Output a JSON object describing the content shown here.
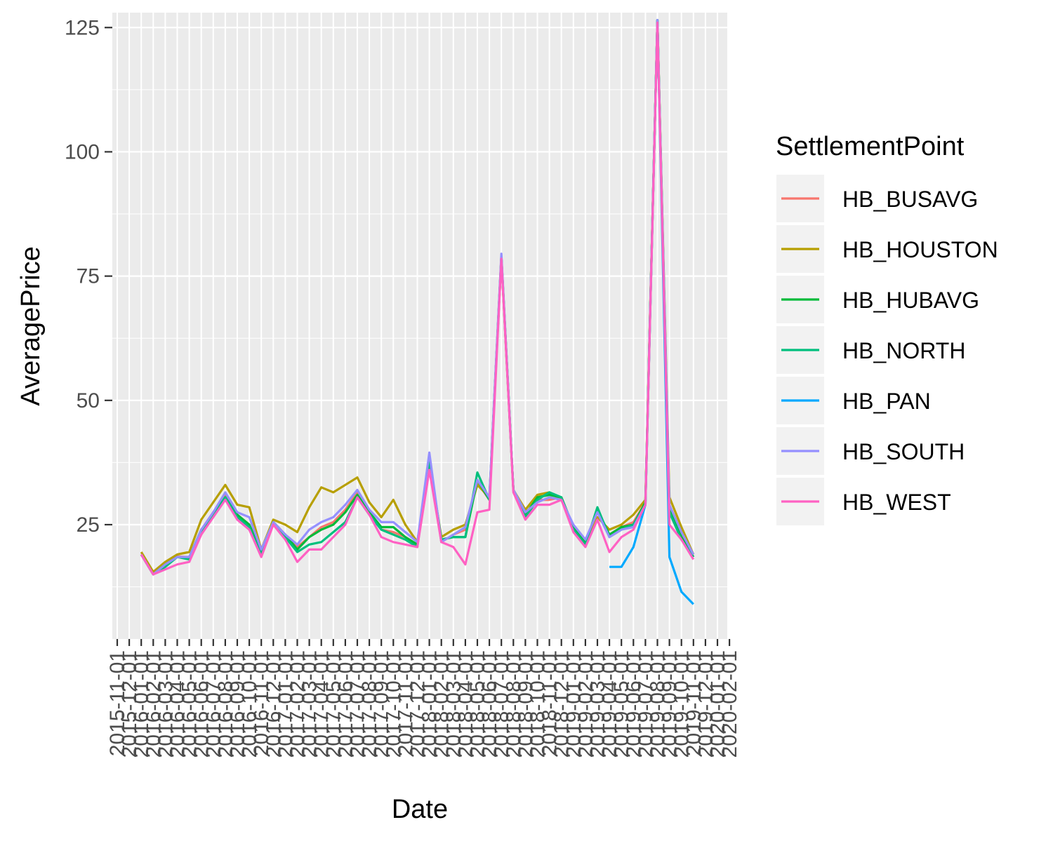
{
  "chart_data": {
    "type": "line",
    "xlabel": "Date",
    "ylabel": "AveragePrice",
    "legend_title": "SettlementPoint",
    "legend_position": "right",
    "grid": true,
    "ylim": [
      2,
      128
    ],
    "yticks": [
      25,
      50,
      75,
      100,
      125
    ],
    "x": [
      "2015-11-01",
      "2015-12-01",
      "2016-01-01",
      "2016-02-01",
      "2016-03-01",
      "2016-04-01",
      "2016-05-01",
      "2016-06-01",
      "2016-07-01",
      "2016-08-01",
      "2016-09-01",
      "2016-10-01",
      "2016-11-01",
      "2016-12-01",
      "2017-01-01",
      "2017-02-01",
      "2017-03-01",
      "2017-04-01",
      "2017-05-01",
      "2017-06-01",
      "2017-07-01",
      "2017-08-01",
      "2017-09-01",
      "2017-10-01",
      "2017-11-01",
      "2017-12-01",
      "2018-01-01",
      "2018-02-01",
      "2018-03-01",
      "2018-04-01",
      "2018-05-01",
      "2018-06-01",
      "2018-07-01",
      "2018-08-01",
      "2018-09-01",
      "2018-10-01",
      "2018-11-01",
      "2018-12-01",
      "2019-01-01",
      "2019-02-01",
      "2019-03-01",
      "2019-04-01",
      "2019-05-01",
      "2019-06-01",
      "2019-07-01",
      "2019-08-01",
      "2019-09-01",
      "2019-10-01",
      "2019-11-01",
      "2019-12-01",
      "2020-01-01",
      "2020-02-01"
    ],
    "series": [
      {
        "name": "HB_BUSAVG",
        "color": "#F8766D",
        "values": [
          null,
          null,
          19.0,
          15.0,
          17.0,
          18.6,
          18.5,
          24.0,
          27.5,
          31.0,
          27.0,
          25.0,
          19.5,
          25.5,
          23.0,
          20.5,
          22.5,
          24.5,
          25.5,
          28.0,
          31.5,
          27.5,
          24.0,
          23.5,
          22.5,
          21.0,
          38.0,
          21.5,
          23.0,
          24.0,
          33.5,
          30.0,
          79.0,
          32.0,
          27.0,
          30.0,
          30.0,
          30.5,
          24.5,
          21.5,
          27.5,
          23.0,
          24.5,
          25.5,
          29.5,
          126.5,
          28.5,
          23.0,
          18.5,
          null,
          null,
          null
        ]
      },
      {
        "name": "HB_HOUSTON",
        "color": "#B79F00",
        "values": [
          null,
          null,
          19.5,
          15.5,
          17.5,
          19.0,
          19.5,
          26.0,
          29.5,
          33.0,
          29.0,
          28.5,
          20.0,
          26.0,
          25.0,
          23.5,
          28.5,
          32.5,
          31.5,
          33.0,
          34.5,
          29.5,
          26.5,
          30.0,
          25.0,
          21.5,
          37.5,
          22.5,
          24.0,
          25.0,
          33.0,
          30.5,
          78.5,
          32.0,
          28.0,
          31.0,
          31.5,
          30.0,
          24.5,
          21.5,
          26.5,
          24.0,
          25.0,
          27.0,
          30.0,
          126.5,
          30.5,
          24.5,
          19.0,
          null,
          null,
          null
        ]
      },
      {
        "name": "HB_HUBAVG",
        "color": "#00BA38",
        "values": [
          null,
          null,
          19.0,
          15.0,
          17.0,
          18.5,
          18.5,
          24.0,
          27.0,
          30.5,
          27.0,
          25.0,
          19.5,
          25.5,
          23.0,
          20.0,
          22.5,
          24.0,
          25.0,
          27.5,
          31.0,
          27.5,
          24.5,
          24.5,
          22.5,
          21.0,
          38.0,
          22.0,
          22.5,
          22.5,
          34.0,
          30.0,
          79.0,
          32.0,
          27.0,
          30.5,
          31.0,
          30.5,
          24.5,
          21.5,
          28.0,
          23.0,
          24.5,
          25.0,
          29.5,
          126.5,
          28.0,
          22.5,
          18.5,
          null,
          null,
          null
        ]
      },
      {
        "name": "HB_NORTH",
        "color": "#00BF7D",
        "values": [
          null,
          null,
          19.0,
          15.0,
          16.5,
          18.5,
          18.0,
          23.5,
          27.0,
          30.5,
          26.5,
          24.5,
          19.0,
          25.5,
          22.5,
          19.5,
          21.0,
          21.5,
          23.5,
          25.5,
          30.5,
          27.0,
          24.0,
          23.0,
          22.0,
          20.5,
          38.0,
          22.0,
          22.5,
          22.5,
          35.5,
          30.0,
          79.0,
          32.0,
          26.5,
          30.0,
          31.5,
          30.5,
          24.0,
          21.0,
          28.5,
          22.5,
          24.0,
          25.0,
          29.0,
          126.5,
          27.5,
          22.0,
          18.5,
          null,
          null,
          null
        ]
      },
      {
        "name": "HB_PAN",
        "color": "#00A9FF",
        "values": [
          null,
          null,
          null,
          null,
          null,
          null,
          null,
          null,
          null,
          null,
          null,
          null,
          null,
          null,
          null,
          null,
          null,
          null,
          null,
          null,
          null,
          null,
          null,
          null,
          null,
          null,
          null,
          null,
          null,
          null,
          null,
          null,
          null,
          null,
          null,
          null,
          null,
          null,
          null,
          null,
          null,
          16.5,
          16.5,
          20.5,
          29.0,
          126.5,
          18.5,
          11.5,
          9.0,
          null,
          null,
          null
        ]
      },
      {
        "name": "HB_SOUTH",
        "color": "#9590FF",
        "values": [
          null,
          null,
          19.0,
          15.0,
          17.0,
          18.5,
          18.5,
          24.0,
          27.5,
          31.5,
          27.5,
          26.5,
          20.0,
          25.5,
          23.0,
          21.0,
          24.0,
          25.5,
          26.5,
          29.0,
          32.0,
          28.0,
          25.5,
          25.5,
          23.5,
          21.5,
          39.5,
          21.5,
          23.0,
          24.5,
          34.0,
          30.5,
          79.5,
          32.0,
          27.5,
          29.5,
          30.5,
          30.0,
          25.0,
          22.0,
          27.5,
          22.5,
          24.0,
          24.5,
          29.0,
          126.5,
          29.0,
          23.5,
          19.0,
          null,
          null,
          null
        ]
      },
      {
        "name": "HB_WEST",
        "color": "#FF61C3",
        "values": [
          null,
          null,
          19.0,
          15.0,
          16.0,
          17.0,
          17.5,
          23.0,
          26.5,
          30.0,
          26.0,
          24.0,
          18.5,
          25.0,
          22.0,
          17.5,
          20.0,
          20.0,
          22.5,
          25.0,
          30.5,
          27.0,
          22.5,
          21.5,
          21.0,
          20.5,
          36.0,
          21.5,
          20.5,
          17.0,
          27.5,
          28.0,
          78.5,
          31.5,
          26.0,
          29.0,
          29.0,
          30.0,
          23.5,
          20.5,
          26.0,
          19.5,
          22.5,
          24.0,
          29.0,
          126.0,
          25.0,
          22.0,
          18.0,
          null,
          null,
          null
        ]
      }
    ]
  }
}
